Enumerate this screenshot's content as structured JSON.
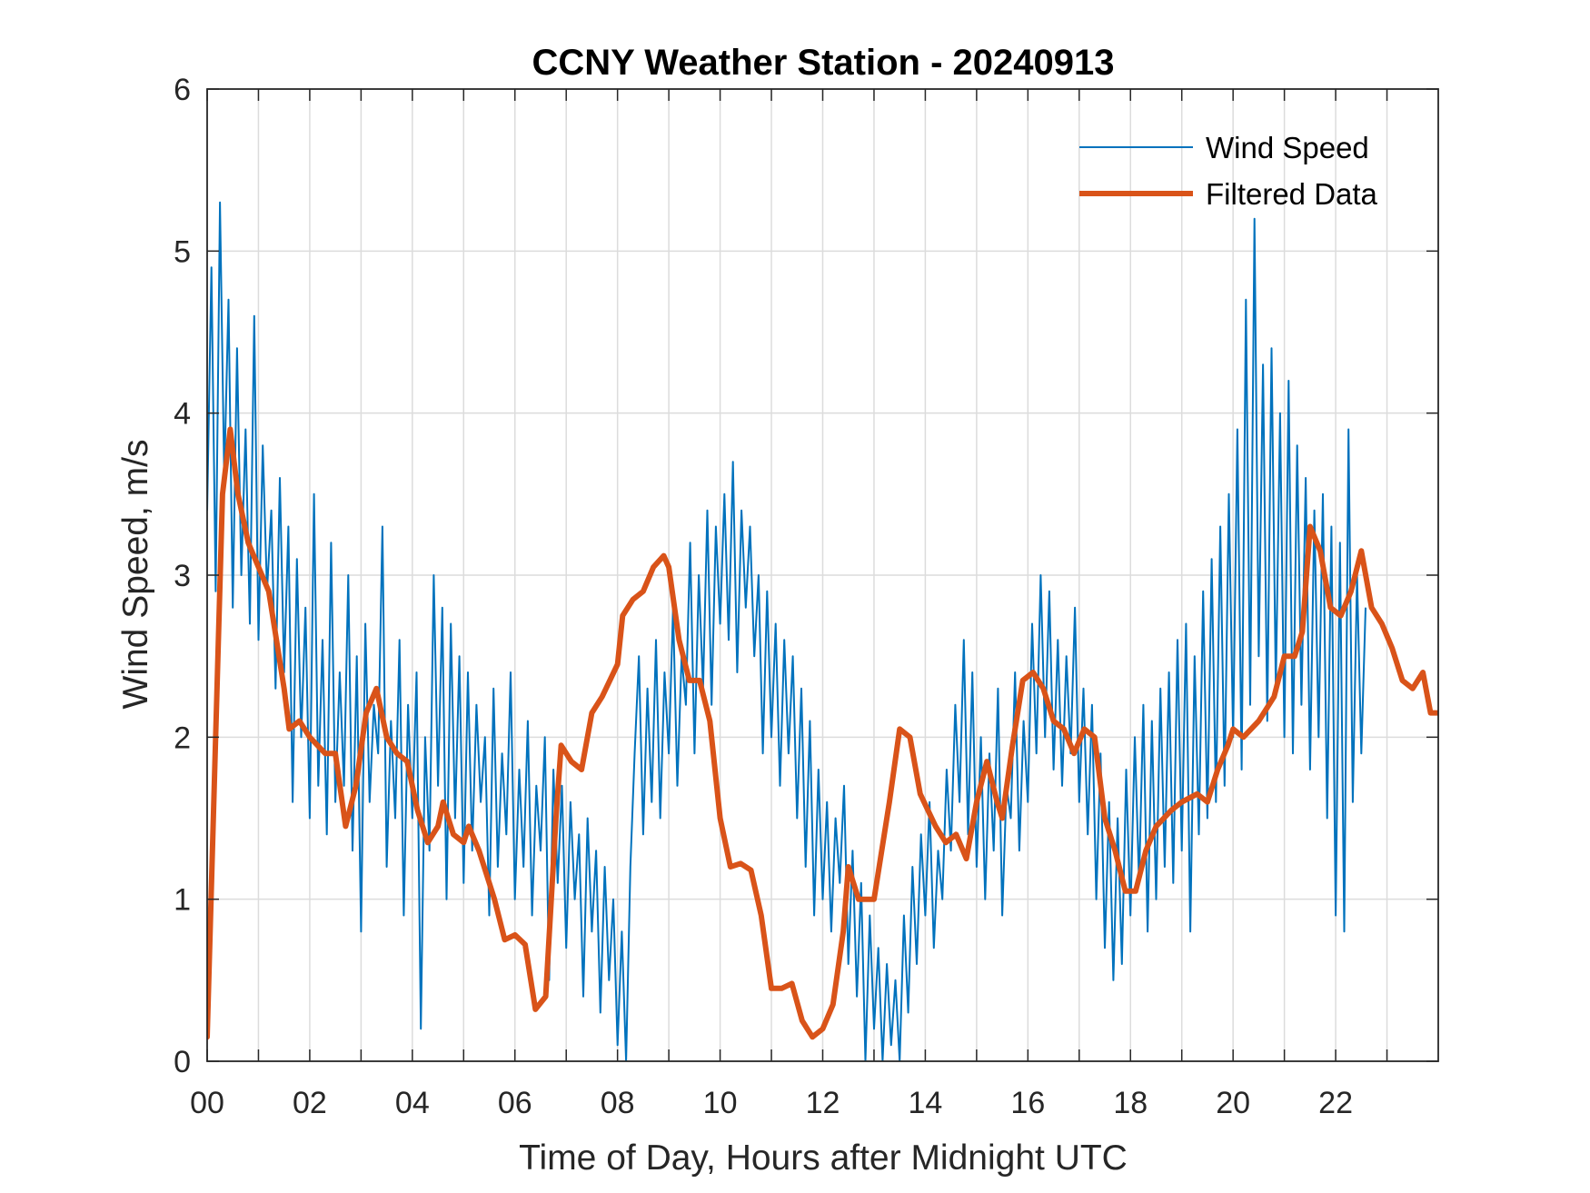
{
  "chart_data": {
    "type": "line",
    "title": "CCNY Weather Station - 20240913",
    "xlabel": "Time of Day, Hours after Midnight UTC",
    "ylabel": "Wind Speed, m/s",
    "xlim": [
      0,
      24
    ],
    "ylim": [
      0,
      6
    ],
    "xticks": [
      0,
      1,
      2,
      3,
      4,
      5,
      6,
      7,
      8,
      9,
      10,
      11,
      12,
      13,
      14,
      15,
      16,
      17,
      18,
      19,
      20,
      21,
      22,
      23
    ],
    "xtick_labels": [
      "00",
      "",
      "02",
      "",
      "04",
      "",
      "06",
      "",
      "08",
      "",
      "10",
      "",
      "12",
      "",
      "14",
      "",
      "16",
      "",
      "18",
      "",
      "20",
      "",
      "22",
      ""
    ],
    "yticks": [
      0,
      1,
      2,
      3,
      4,
      5,
      6
    ],
    "ytick_labels": [
      "0",
      "1",
      "2",
      "3",
      "4",
      "5",
      "6"
    ],
    "grid": true,
    "legend": {
      "position": "top-right",
      "boxed": false
    },
    "colors": {
      "wind_speed": "#0072BD",
      "filtered": "#D95319",
      "axis": "#262626",
      "grid": "#DCDCDC"
    },
    "series": [
      {
        "name": "Wind Speed",
        "style": "thin",
        "x_start": 0,
        "x_step_hours": 0.0833333,
        "values": [
          3.4,
          4.9,
          2.9,
          5.3,
          3.6,
          4.7,
          2.8,
          4.4,
          3.0,
          3.9,
          2.7,
          4.6,
          2.6,
          3.8,
          2.9,
          3.4,
          2.3,
          3.6,
          2.4,
          3.3,
          1.6,
          3.1,
          2.0,
          2.8,
          1.5,
          3.5,
          1.7,
          2.6,
          1.4,
          3.2,
          1.6,
          2.4,
          1.7,
          3.0,
          1.3,
          2.5,
          0.8,
          2.7,
          1.6,
          2.2,
          1.9,
          3.3,
          1.2,
          2.1,
          1.5,
          2.6,
          0.9,
          2.2,
          1.5,
          2.4,
          0.2,
          2.0,
          1.3,
          3.0,
          1.7,
          2.8,
          1.0,
          2.7,
          1.5,
          2.5,
          1.1,
          2.4,
          1.3,
          2.2,
          1.6,
          2.0,
          0.9,
          2.3,
          1.2,
          1.9,
          1.4,
          2.4,
          1.0,
          1.8,
          1.2,
          2.1,
          0.9,
          1.7,
          1.3,
          2.0,
          0.5,
          1.8,
          1.1,
          1.7,
          0.7,
          1.6,
          1.0,
          1.4,
          0.4,
          1.5,
          0.8,
          1.3,
          0.3,
          1.2,
          0.5,
          1.0,
          0.1,
          0.8,
          0.0,
          1.2,
          1.9,
          2.5,
          1.4,
          2.3,
          1.6,
          2.6,
          1.5,
          2.4,
          1.9,
          2.8,
          1.7,
          2.5,
          2.2,
          3.2,
          1.9,
          3.0,
          2.3,
          3.4,
          2.2,
          3.3,
          2.7,
          3.5,
          2.6,
          3.7,
          2.4,
          3.4,
          2.8,
          3.3,
          2.5,
          3.0,
          1.9,
          2.9,
          2.0,
          2.7,
          1.7,
          2.6,
          1.9,
          2.5,
          1.5,
          2.3,
          1.2,
          2.1,
          0.9,
          1.8,
          1.0,
          1.6,
          0.8,
          1.5,
          1.1,
          1.7,
          0.6,
          1.3,
          0.4,
          1.1,
          0.0,
          0.9,
          0.2,
          0.7,
          0.0,
          0.6,
          0.1,
          0.5,
          0.0,
          0.9,
          0.3,
          1.2,
          0.6,
          1.4,
          0.9,
          1.6,
          0.7,
          1.3,
          1.0,
          1.8,
          1.3,
          2.2,
          1.6,
          2.6,
          1.4,
          2.4,
          1.2,
          2.0,
          1.0,
          1.9,
          1.3,
          2.3,
          0.9,
          1.7,
          1.5,
          2.4,
          1.3,
          2.1,
          1.6,
          2.7,
          1.9,
          3.0,
          2.0,
          2.9,
          1.8,
          2.6,
          1.7,
          2.5,
          1.9,
          2.8,
          1.6,
          2.3,
          1.4,
          2.2,
          1.0,
          1.9,
          0.7,
          1.6,
          0.5,
          1.5,
          0.6,
          1.8,
          0.9,
          2.0,
          1.1,
          2.2,
          0.8,
          2.1,
          1.0,
          2.3,
          1.2,
          2.4,
          1.1,
          2.6,
          1.3,
          2.7,
          0.8,
          2.5,
          1.4,
          2.9,
          1.5,
          3.1,
          1.6,
          3.3,
          1.7,
          3.5,
          2.0,
          3.9,
          1.8,
          4.7,
          2.2,
          5.2,
          2.5,
          4.3,
          2.1,
          4.4,
          2.3,
          4.0,
          2.0,
          4.2,
          1.9,
          3.8,
          2.2,
          3.6,
          1.8,
          3.4,
          2.0,
          3.5,
          1.5,
          3.3,
          0.9,
          3.2,
          0.8,
          3.9,
          1.6,
          3.0,
          1.9,
          2.8
        ]
      },
      {
        "name": "Filtered Data",
        "style": "thick",
        "points": [
          [
            0.0,
            0.15
          ],
          [
            0.3,
            3.5
          ],
          [
            0.45,
            3.9
          ],
          [
            0.6,
            3.5
          ],
          [
            0.8,
            3.2
          ],
          [
            1.0,
            3.05
          ],
          [
            1.2,
            2.9
          ],
          [
            1.5,
            2.3
          ],
          [
            1.6,
            2.05
          ],
          [
            1.8,
            2.1
          ],
          [
            2.0,
            2.0
          ],
          [
            2.3,
            1.9
          ],
          [
            2.5,
            1.9
          ],
          [
            2.7,
            1.45
          ],
          [
            2.9,
            1.7
          ],
          [
            3.1,
            2.15
          ],
          [
            3.3,
            2.3
          ],
          [
            3.5,
            2.0
          ],
          [
            3.7,
            1.9
          ],
          [
            3.9,
            1.85
          ],
          [
            4.1,
            1.55
          ],
          [
            4.3,
            1.35
          ],
          [
            4.5,
            1.45
          ],
          [
            4.6,
            1.6
          ],
          [
            4.8,
            1.4
          ],
          [
            5.0,
            1.35
          ],
          [
            5.1,
            1.45
          ],
          [
            5.3,
            1.3
          ],
          [
            5.6,
            1.0
          ],
          [
            5.8,
            0.75
          ],
          [
            6.0,
            0.78
          ],
          [
            6.2,
            0.72
          ],
          [
            6.4,
            0.32
          ],
          [
            6.6,
            0.4
          ],
          [
            6.8,
            1.5
          ],
          [
            6.9,
            1.95
          ],
          [
            7.1,
            1.85
          ],
          [
            7.3,
            1.8
          ],
          [
            7.5,
            2.15
          ],
          [
            7.7,
            2.25
          ],
          [
            8.0,
            2.45
          ],
          [
            8.1,
            2.75
          ],
          [
            8.3,
            2.85
          ],
          [
            8.5,
            2.9
          ],
          [
            8.7,
            3.05
          ],
          [
            8.9,
            3.12
          ],
          [
            9.0,
            3.05
          ],
          [
            9.2,
            2.6
          ],
          [
            9.4,
            2.35
          ],
          [
            9.6,
            2.35
          ],
          [
            9.8,
            2.1
          ],
          [
            10.0,
            1.5
          ],
          [
            10.2,
            1.2
          ],
          [
            10.4,
            1.22
          ],
          [
            10.6,
            1.18
          ],
          [
            10.8,
            0.9
          ],
          [
            11.0,
            0.45
          ],
          [
            11.2,
            0.45
          ],
          [
            11.4,
            0.48
          ],
          [
            11.6,
            0.25
          ],
          [
            11.8,
            0.15
          ],
          [
            12.0,
            0.2
          ],
          [
            12.2,
            0.35
          ],
          [
            12.4,
            0.8
          ],
          [
            12.5,
            1.2
          ],
          [
            12.7,
            1.0
          ],
          [
            13.0,
            1.0
          ],
          [
            13.3,
            1.6
          ],
          [
            13.5,
            2.05
          ],
          [
            13.7,
            2.0
          ],
          [
            13.9,
            1.65
          ],
          [
            14.2,
            1.45
          ],
          [
            14.4,
            1.35
          ],
          [
            14.6,
            1.4
          ],
          [
            14.8,
            1.25
          ],
          [
            15.0,
            1.6
          ],
          [
            15.2,
            1.85
          ],
          [
            15.4,
            1.6
          ],
          [
            15.5,
            1.5
          ],
          [
            15.7,
            1.95
          ],
          [
            15.9,
            2.35
          ],
          [
            16.1,
            2.4
          ],
          [
            16.3,
            2.3
          ],
          [
            16.5,
            2.1
          ],
          [
            16.7,
            2.05
          ],
          [
            16.9,
            1.9
          ],
          [
            17.1,
            2.05
          ],
          [
            17.3,
            2.0
          ],
          [
            17.5,
            1.5
          ],
          [
            17.7,
            1.3
          ],
          [
            17.9,
            1.05
          ],
          [
            18.1,
            1.05
          ],
          [
            18.3,
            1.3
          ],
          [
            18.5,
            1.45
          ],
          [
            18.8,
            1.55
          ],
          [
            19.0,
            1.6
          ],
          [
            19.3,
            1.65
          ],
          [
            19.5,
            1.6
          ],
          [
            19.7,
            1.8
          ],
          [
            19.9,
            1.95
          ],
          [
            20.0,
            2.05
          ],
          [
            20.2,
            2.0
          ],
          [
            20.5,
            2.1
          ],
          [
            20.8,
            2.25
          ],
          [
            21.0,
            2.5
          ],
          [
            21.2,
            2.5
          ],
          [
            21.35,
            2.65
          ],
          [
            21.5,
            3.3
          ],
          [
            21.7,
            3.15
          ],
          [
            21.9,
            2.8
          ],
          [
            22.1,
            2.75
          ],
          [
            22.3,
            2.9
          ],
          [
            22.5,
            3.15
          ],
          [
            22.7,
            2.8
          ],
          [
            22.9,
            2.7
          ],
          [
            23.1,
            2.55
          ],
          [
            23.3,
            2.35
          ],
          [
            23.5,
            2.3
          ],
          [
            23.7,
            2.4
          ],
          [
            23.85,
            2.15
          ],
          [
            24.0,
            2.15
          ]
        ]
      }
    ]
  }
}
